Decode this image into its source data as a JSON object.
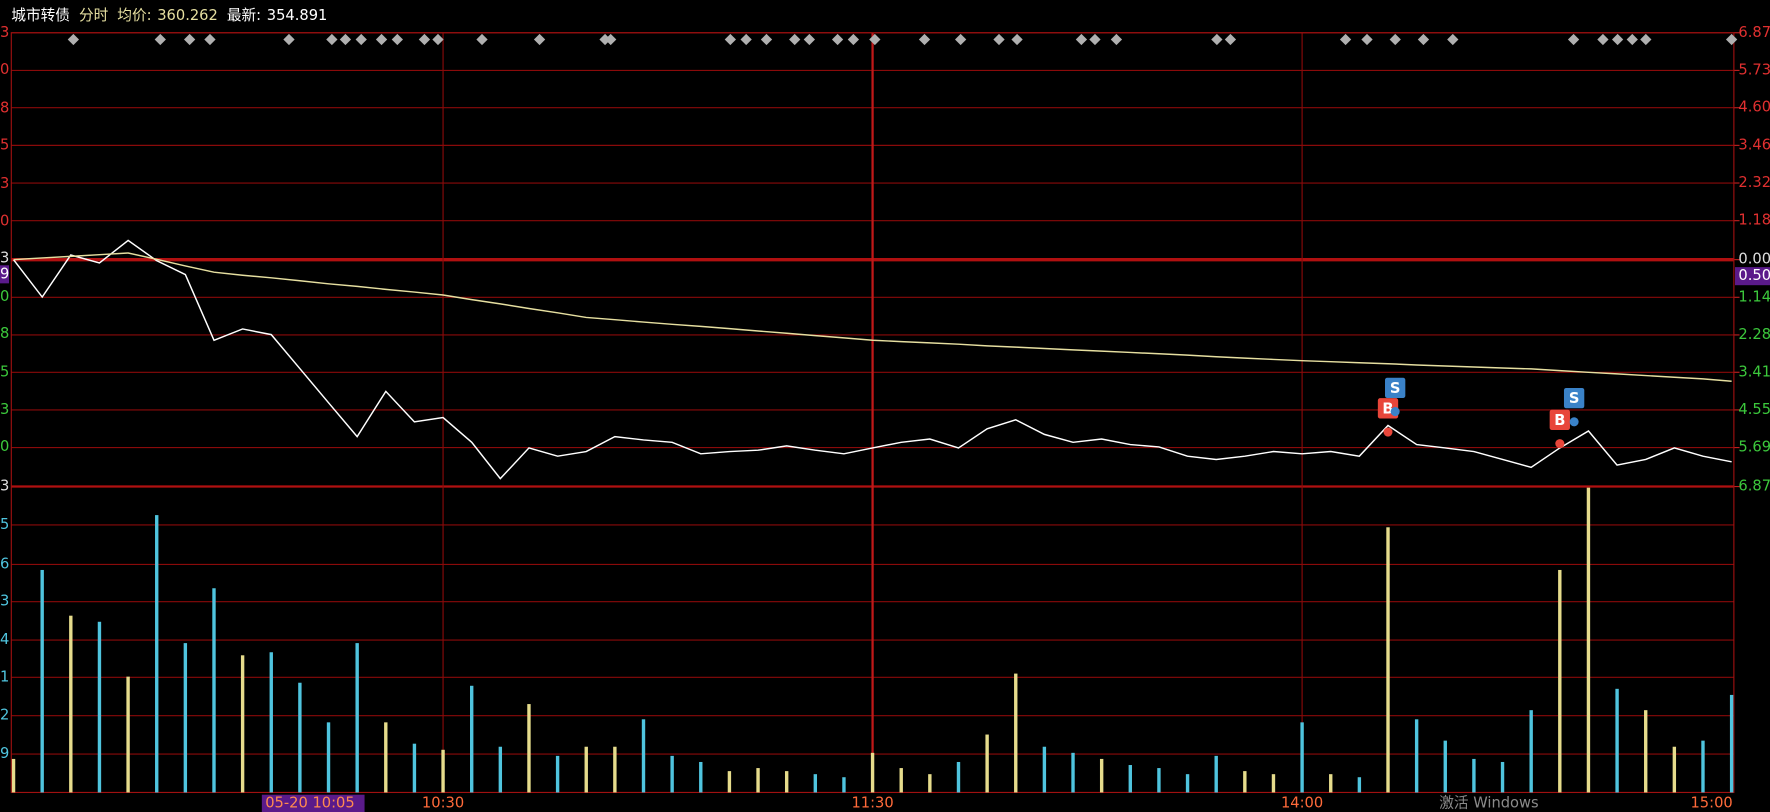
{
  "chart_data": [
    {
      "type": "line",
      "title": "城市转债",
      "mode": "分时",
      "avg_label": "均价:",
      "avg_price": 360.262,
      "latest_label": "最新:",
      "latest_price": 354.891,
      "x": [
        0,
        4,
        8,
        12,
        16,
        20,
        24,
        28,
        32,
        36,
        40,
        44,
        48,
        52,
        56,
        60,
        64,
        68,
        72,
        76,
        80,
        84,
        88,
        92,
        96,
        100,
        104,
        108,
        112,
        116,
        120,
        124,
        128,
        132,
        136,
        140,
        144,
        148,
        152,
        156,
        160,
        164,
        168,
        172,
        176,
        180,
        184,
        188,
        192,
        196,
        200,
        204,
        208,
        212,
        216,
        220,
        224,
        228,
        232,
        236,
        240
      ],
      "xlim": [
        0,
        240
      ],
      "xticks": [
        {
          "value": 60,
          "label": "10:30"
        },
        {
          "value": 120,
          "label": "11:30"
        },
        {
          "value": 180,
          "label": "14:00"
        },
        {
          "value": 240,
          "label": "15:00"
        }
      ],
      "cursor": {
        "value": 35,
        "label": "05-20 10:05"
      },
      "series": [
        {
          "color": "#ffffff",
          "values": [
            0,
            -1.13,
            0.14,
            -0.1,
            0.58,
            -0.03,
            -0.45,
            -2.44,
            -2.1,
            -2.27,
            -3.3,
            -4.33,
            -5.36,
            -3.99,
            -4.91,
            -4.78,
            -5.53,
            -6.63,
            -5.7,
            -5.95,
            -5.81,
            -5.36,
            -5.46,
            -5.53,
            -5.88,
            -5.81,
            -5.77,
            -5.64,
            -5.77,
            -5.88,
            -5.7,
            -5.53,
            -5.43,
            -5.7,
            -5.12,
            -4.85,
            -5.29,
            -5.53,
            -5.43,
            -5.6,
            -5.67,
            -5.95,
            -6.05,
            -5.95,
            -5.81,
            -5.88,
            -5.81,
            -5.95,
            -5.02,
            -5.6,
            -5.7,
            -5.81,
            -6.05,
            -6.29,
            -5.7,
            -5.19,
            -6.22,
            -6.05,
            -5.7,
            -5.95,
            -6.12
          ]
        },
        {
          "color": "#e6dfa0",
          "values": [
            0,
            0.05,
            0.1,
            0.15,
            0.2,
            0.01,
            -0.19,
            -0.38,
            -0.47,
            -0.55,
            -0.64,
            -0.73,
            -0.81,
            -0.9,
            -0.98,
            -1.07,
            -1.21,
            -1.34,
            -1.48,
            -1.61,
            -1.75,
            -1.82,
            -1.89,
            -1.96,
            -2.02,
            -2.09,
            -2.16,
            -2.23,
            -2.3,
            -2.37,
            -2.44,
            -2.48,
            -2.52,
            -2.56,
            -2.61,
            -2.65,
            -2.69,
            -2.73,
            -2.77,
            -2.81,
            -2.85,
            -2.89,
            -2.94,
            -2.98,
            -3.02,
            -3.06,
            -3.09,
            -3.12,
            -3.15,
            -3.19,
            -3.22,
            -3.25,
            -3.28,
            -3.31,
            -3.36,
            -3.41,
            -3.46,
            -3.51,
            -3.56,
            -3.61,
            -3.68
          ]
        }
      ],
      "ylim": [
        -6.87,
        6.87
      ],
      "yticks": [
        {
          "value": 6.87,
          "label": "6.87"
        },
        {
          "value": 5.73,
          "label": "5.73"
        },
        {
          "value": 4.6,
          "label": "4.60"
        },
        {
          "value": 3.46,
          "label": "3.46"
        },
        {
          "value": 2.32,
          "label": "2.32"
        },
        {
          "value": 1.18,
          "label": "1.18"
        },
        {
          "value": 0,
          "label": "0.00"
        },
        {
          "value": -1.14,
          "label": "1.14"
        },
        {
          "value": -2.28,
          "label": "2.28"
        },
        {
          "value": -3.41,
          "label": "3.41"
        },
        {
          "value": -4.55,
          "label": "4.55"
        },
        {
          "value": -5.69,
          "label": "5.69"
        },
        {
          "value": -6.87,
          "label": "6.87"
        }
      ],
      "current": {
        "value": -0.5,
        "label": "0.50"
      },
      "left_labels": [
        "3",
        "0",
        "8",
        "5",
        "3",
        "0",
        "3",
        "9",
        "0",
        "8",
        "5",
        "3",
        "0",
        "3"
      ],
      "trades": [
        {
          "label": "B",
          "x": 192,
          "y": -5.22,
          "color": "#e8463a"
        },
        {
          "label": "S",
          "x": 193,
          "y": -4.6,
          "color": "#3a82c8"
        },
        {
          "label": "B",
          "x": 216,
          "y": -5.57,
          "color": "#e8463a"
        },
        {
          "label": "S",
          "x": 218,
          "y": -4.91,
          "color": "#3a82c8"
        }
      ],
      "watermark": "激活 Windows"
    },
    {
      "type": "bar",
      "x": [
        0,
        4,
        8,
        12,
        16,
        20,
        24,
        28,
        32,
        36,
        40,
        44,
        48,
        52,
        56,
        60,
        64,
        68,
        72,
        76,
        80,
        84,
        88,
        92,
        96,
        100,
        104,
        108,
        112,
        116,
        120,
        124,
        128,
        132,
        136,
        140,
        144,
        148,
        152,
        156,
        160,
        164,
        168,
        172,
        176,
        180,
        184,
        188,
        192,
        196,
        200,
        204,
        208,
        212,
        216,
        220,
        224,
        228,
        232,
        236,
        240
      ],
      "xlim": [
        0,
        240
      ],
      "values": [
        11,
        73,
        58,
        56,
        38,
        91,
        49,
        67,
        45,
        46,
        36,
        23,
        49,
        23,
        16,
        14,
        35,
        15,
        29,
        12,
        15,
        15,
        24,
        12,
        10,
        7,
        8,
        7,
        6,
        5,
        13,
        8,
        6,
        10,
        19,
        39,
        15,
        13,
        11,
        9,
        8,
        6,
        12,
        7,
        6,
        23,
        6,
        5,
        87,
        24,
        17,
        11,
        10,
        27,
        73,
        100,
        34,
        27,
        15,
        17,
        32
      ],
      "ylim": [
        0,
        100
      ],
      "up_color": "#e6dc8c",
      "down_color": "#4fc4de",
      "left_labels": [
        "5",
        "6",
        "3",
        "4",
        "1",
        "2",
        "9"
      ]
    }
  ]
}
